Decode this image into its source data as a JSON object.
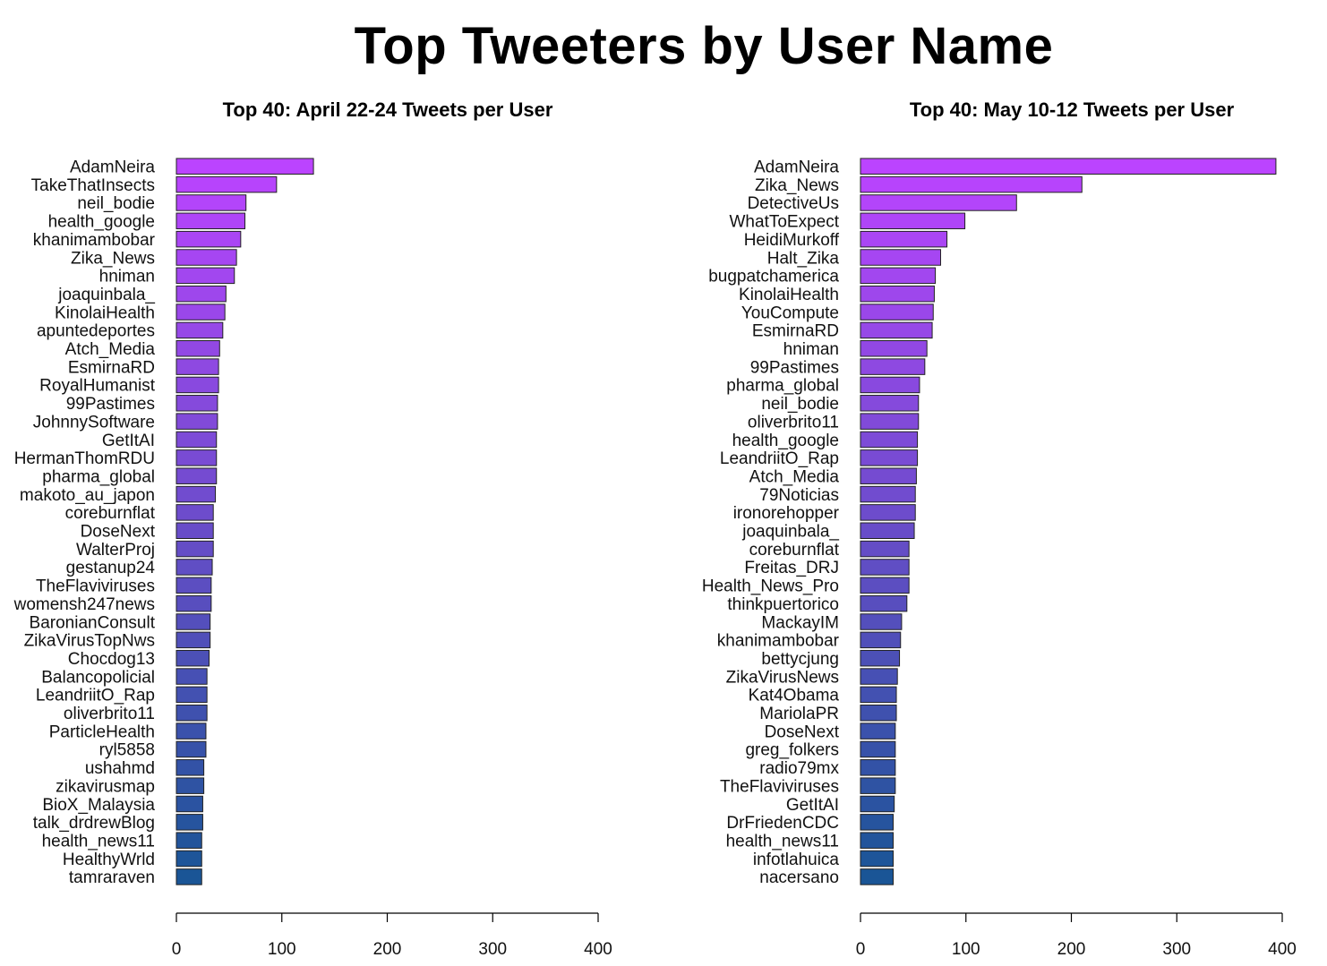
{
  "title": "Top Tweeters by User Name",
  "chart_data": [
    {
      "type": "bar",
      "orientation": "horizontal",
      "title": "Top 40: April 22-24 Tweets per User",
      "xlabel": "",
      "ylabel": "",
      "xlim": [
        0,
        400
      ],
      "ticks": [
        "0",
        "100",
        "200",
        "300",
        "400"
      ],
      "grid": false,
      "categories": [
        "AdamNeira",
        "TakeThatInsects",
        "neil_bodie",
        "health_google",
        "khanimambobar",
        "Zika_News",
        "hniman",
        "joaquinbala_",
        "KinolaiHealth",
        "apuntedeportes",
        "Atch_Media",
        "EsmirnaRD",
        "RoyalHumanist",
        "99Pastimes",
        "JohnnySoftware",
        "GetItAI",
        "HermanThomRDU",
        "pharma_global",
        "makoto_au_japon",
        "coreburnflat",
        "DoseNext",
        "WalterProj",
        "gestanup24",
        "TheFlaviviruses",
        "womensh247news",
        "BaronianConsult",
        "ZikaVirusTopNws",
        "Chocdog13",
        "Balancopolicial",
        "LeandriitO_Rap",
        "oliverbrito11",
        "ParticleHealth",
        "ryl5858",
        "ushahmd",
        "zikavirusmap",
        "BioX_Malaysia",
        "talk_drdrewBlog",
        "health_news11",
        "HealthyWrld",
        "tamraraven"
      ],
      "values": [
        130,
        95,
        66,
        65,
        61,
        57,
        55,
        47,
        46,
        44,
        41,
        40,
        40,
        39,
        39,
        38,
        38,
        38,
        37,
        35,
        35,
        35,
        34,
        33,
        33,
        32,
        32,
        31,
        29,
        29,
        29,
        28,
        28,
        26,
        26,
        25,
        25,
        24,
        24,
        24
      ],
      "color_top": "#bb44ff",
      "color_bottom": "#1a5596"
    },
    {
      "type": "bar",
      "orientation": "horizontal",
      "title": "Top 40: May 10-12 Tweets per User",
      "xlabel": "",
      "ylabel": "",
      "xlim": [
        0,
        400
      ],
      "ticks": [
        "0",
        "100",
        "200",
        "300",
        "400"
      ],
      "grid": false,
      "categories": [
        "AdamNeira",
        "Zika_News",
        "DetectiveUs",
        "WhatToExpect",
        "HeidiMurkoff",
        "Halt_Zika",
        "bugpatchamerica",
        "KinolaiHealth",
        "YouCompute",
        "EsmirnaRD",
        "hniman",
        "99Pastimes",
        "pharma_global",
        "neil_bodie",
        "oliverbrito11",
        "health_google",
        "LeandriitO_Rap",
        "Atch_Media",
        "79Noticias",
        "ironorehopper",
        "joaquinbala_",
        "coreburnflat",
        "Freitas_DRJ",
        "Health_News_Pro",
        "thinkpuertorico",
        "MackayIM",
        "khanimambobar",
        "bettycjung",
        "ZikaVirusNews",
        "Kat4Obama",
        "MariolaPR",
        "DoseNext",
        "greg_folkers",
        "radio79mx",
        "TheFlaviviruses",
        "GetItAI",
        "DrFriedenCDC",
        "health_news11",
        "infotlahuica",
        "nacersano"
      ],
      "values": [
        394,
        210,
        148,
        99,
        82,
        76,
        71,
        70,
        69,
        68,
        63,
        61,
        56,
        55,
        55,
        54,
        54,
        53,
        52,
        52,
        51,
        46,
        46,
        46,
        44,
        39,
        38,
        37,
        35,
        34,
        34,
        33,
        33,
        33,
        33,
        32,
        31,
        31,
        31,
        31
      ],
      "color_top": "#bb44ff",
      "color_bottom": "#1a5596"
    }
  ]
}
